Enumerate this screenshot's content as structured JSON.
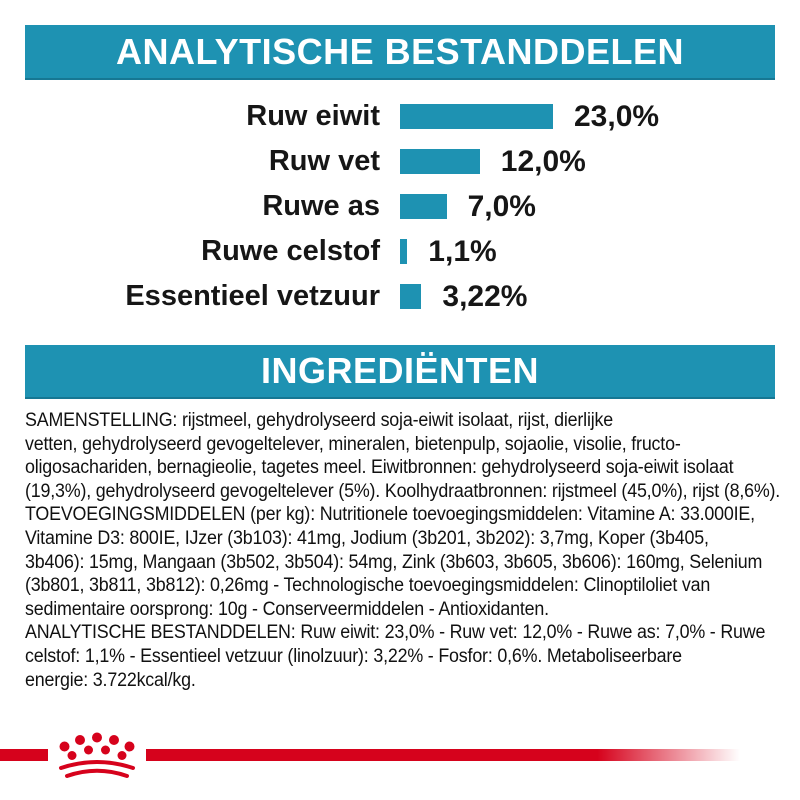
{
  "colors": {
    "teal": "#1E92B2",
    "red": "#D6021C",
    "text": "#111111",
    "header_text": "#FFFFFF"
  },
  "sections": {
    "analytical": {
      "title": "ANALYTISCHE BESTANDDELEN"
    },
    "ingredients": {
      "title": "INGREDIËNTEN"
    }
  },
  "chart_data": {
    "type": "bar",
    "orientation": "horizontal",
    "title": "ANALYTISCHE BESTANDDELEN",
    "categories": [
      "Ruw eiwit",
      "Ruw vet",
      "Ruwe as",
      "Ruwe celstof",
      "Essentieel vetzuur"
    ],
    "values": [
      23.0,
      12.0,
      7.0,
      1.1,
      3.22
    ],
    "value_labels": [
      "23,0%",
      "12,0%",
      "7,0%",
      "1,1%",
      "3,22%"
    ],
    "unit": "%",
    "xlim": [
      0,
      25
    ],
    "grid": false,
    "bar_color": "#1E92B2",
    "data_labels_position": "right-of-bar"
  },
  "ingredients_text": {
    "lines": [
      "SAMENSTELLING: rijstmeel, gehydrolyseerd soja-eiwit isolaat, rijst, dierlijke",
      "vetten, gehydrolyseerd gevogeltelever, mineralen, bietenpulp, sojaolie, visolie, fructo-",
      "oligosachariden, bernagieolie, tagetes meel. Eiwitbronnen: gehydrolyseerd soja-eiwit isolaat",
      "(19,3%), gehydrolyseerd gevogeltelever (5%). Koolhydraatbronnen: rijstmeel (45,0%), rijst (8,6%).",
      "TOEVOEGINGSMIDDELEN (per kg): Nutritionele toevoegingsmiddelen: Vitamine A: 33.000IE,",
      "Vitamine D3: 800IE, IJzer (3b103): 41mg, Jodium (3b201, 3b202): 3,7mg, Koper (3b405,",
      "3b406): 15mg, Mangaan (3b502, 3b504): 54mg, Zink (3b603, 3b605, 3b606): 160mg, Selenium",
      "(3b801, 3b811, 3b812): 0,26mg - Technologische toevoegingsmiddelen: Clinoptiloliet van",
      "sedimentaire oorsprong: 10g - Conserveermiddelen - Antioxidanten.",
      "ANALYTISCHE BESTANDDELEN: Ruw eiwit: 23,0% - Ruw vet: 12,0% - Ruwe as: 7,0% - Ruwe",
      "celstof: 1,1% - Essentieel vetzuur (linolzuur): 3,22% - Fosfor: 0,6%. Metaboliseerbare",
      "energie: 3.722kcal/kg."
    ]
  },
  "footer": {
    "logo": "royal-canin-crown-logo"
  }
}
